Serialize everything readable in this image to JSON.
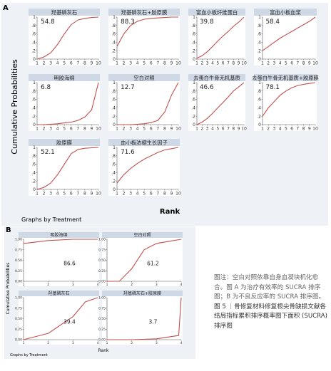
{
  "panel_a": {
    "label": "A",
    "ylabel": "Cumulative Probabilities",
    "xlabel": "Rank",
    "footer": "Graphs by Treatment",
    "yticks": [
      "0",
      ".2",
      ".4",
      ".6",
      ".8",
      "1"
    ],
    "xticks": [
      "1",
      "2",
      "3",
      "4",
      "5",
      "6",
      "7",
      "8",
      "9",
      "10"
    ]
  },
  "panel_b": {
    "label": "B",
    "ylabel": "Cumulative Probabilities",
    "xlabel": "Rank",
    "footer": "Graphs by Treatment",
    "yticks": [
      "0.00",
      "0.25",
      "0.50",
      "0.75",
      "1.00"
    ],
    "xticks": [
      "1",
      "2",
      "3",
      "4"
    ]
  },
  "caption": {
    "note": "图注：空白对照依靠自身血凝块机化愈合。图 A 为治疗有效率的 SUCRA 排序图；B 为不良反应率的 SUCRA 排序图。",
    "title": "图 5 ｜骨修复材料修复根尖骨缺损文献各结局指标累积排序概率图下面积 (SUCRA) 排序图"
  },
  "colors": {
    "line": "#c0504d",
    "header": "#cfd9e6",
    "plot_bg": "#ffffff",
    "page_bg": "#eef2f7"
  },
  "chart_data": [
    {
      "type": "line",
      "panel": "A",
      "ylim": [
        0,
        1
      ],
      "xlim": [
        1,
        10
      ],
      "series": [
        {
          "name": "羟基磷灰石",
          "sucra": "54.8",
          "x": [
            1,
            2,
            3,
            4,
            5,
            6,
            7,
            8,
            9,
            10
          ],
          "y": [
            0.0,
            0.05,
            0.15,
            0.35,
            0.6,
            0.82,
            0.93,
            0.97,
            0.99,
            1.0
          ]
        },
        {
          "name": "羟基磷灰石+胶原膜",
          "sucra": "88.3",
          "x": [
            1,
            2,
            3,
            4,
            5,
            6,
            7,
            8,
            9,
            10
          ],
          "y": [
            0.3,
            0.6,
            0.8,
            0.9,
            0.95,
            0.97,
            0.98,
            0.99,
            1.0,
            1.0
          ]
        },
        {
          "name": "富血小板纤维蛋白",
          "sucra": "39.8",
          "x": [
            1,
            2,
            3,
            4,
            5,
            6,
            7,
            8,
            9,
            10
          ],
          "y": [
            0.02,
            0.08,
            0.18,
            0.3,
            0.43,
            0.55,
            0.66,
            0.78,
            0.88,
            1.0
          ]
        },
        {
          "name": "富血小板血浆",
          "sucra": "58.4",
          "x": [
            1,
            2,
            3,
            4,
            5,
            6,
            7,
            8,
            9,
            10
          ],
          "y": [
            0.2,
            0.3,
            0.4,
            0.5,
            0.58,
            0.66,
            0.74,
            0.82,
            0.9,
            1.0
          ]
        },
        {
          "name": "明胶海绵",
          "sucra": "6.8",
          "x": [
            1,
            2,
            3,
            4,
            5,
            6,
            7,
            8,
            9,
            10
          ],
          "y": [
            0.0,
            0.0,
            0.01,
            0.02,
            0.04,
            0.06,
            0.1,
            0.18,
            0.35,
            1.0
          ]
        },
        {
          "name": "空白对照",
          "sucra": "12.7",
          "x": [
            1,
            2,
            3,
            4,
            5,
            6,
            7,
            8,
            9,
            10
          ],
          "y": [
            0.0,
            0.0,
            0.0,
            0.01,
            0.02,
            0.05,
            0.1,
            0.3,
            0.7,
            1.0
          ]
        },
        {
          "name": "去蛋白牛骨无机基质",
          "sucra": "46.6",
          "x": [
            1,
            2,
            3,
            4,
            5,
            6,
            7,
            8,
            9,
            10
          ],
          "y": [
            0.0,
            0.06,
            0.15,
            0.27,
            0.4,
            0.53,
            0.66,
            0.8,
            0.9,
            1.0
          ]
        },
        {
          "name": "去蛋白牛骨无机基质+胶原膜",
          "sucra": "78.1",
          "x": [
            1,
            2,
            3,
            4,
            5,
            6,
            7,
            8,
            9,
            10
          ],
          "y": [
            0.2,
            0.4,
            0.55,
            0.7,
            0.8,
            0.88,
            0.93,
            0.96,
            0.98,
            1.0
          ]
        },
        {
          "name": "胶原膜",
          "sucra": "52.1",
          "x": [
            1,
            2,
            3,
            4,
            5,
            6,
            7,
            8,
            9,
            10
          ],
          "y": [
            0.0,
            0.05,
            0.15,
            0.35,
            0.6,
            0.85,
            0.95,
            0.98,
            0.99,
            1.0
          ]
        },
        {
          "name": "血小板浓缩生长因子",
          "sucra": "71.6",
          "x": [
            1,
            2,
            3,
            4,
            5,
            6,
            7,
            8,
            9,
            10
          ],
          "y": [
            0.15,
            0.35,
            0.5,
            0.62,
            0.72,
            0.8,
            0.88,
            0.94,
            0.97,
            1.0
          ]
        }
      ]
    },
    {
      "type": "line",
      "panel": "B",
      "ylim": [
        0,
        1
      ],
      "xlim": [
        1,
        4
      ],
      "series": [
        {
          "name": "明胶海绵",
          "sucra": "86.6",
          "x": [
            1,
            2,
            3,
            4
          ],
          "y": [
            0.9,
            0.97,
            1.0,
            1.0
          ]
        },
        {
          "name": "空白对照",
          "sucra": "61.2",
          "x": [
            1,
            1.5,
            2,
            2.5,
            3,
            3.5,
            4
          ],
          "y": [
            0.0,
            0.0,
            0.3,
            0.75,
            0.9,
            0.95,
            1.0
          ]
        },
        {
          "name": "羟基磷灰石",
          "sucra": "39.4",
          "x": [
            1,
            2,
            3,
            3.5,
            4
          ],
          "y": [
            0.0,
            0.15,
            0.55,
            0.9,
            1.0
          ]
        },
        {
          "name": "羟基磷灰石+胶原膜",
          "sucra": "3.7",
          "x": [
            1,
            2,
            3,
            3.9,
            4
          ],
          "y": [
            0.0,
            0.0,
            0.02,
            0.1,
            1.0
          ]
        }
      ]
    }
  ]
}
